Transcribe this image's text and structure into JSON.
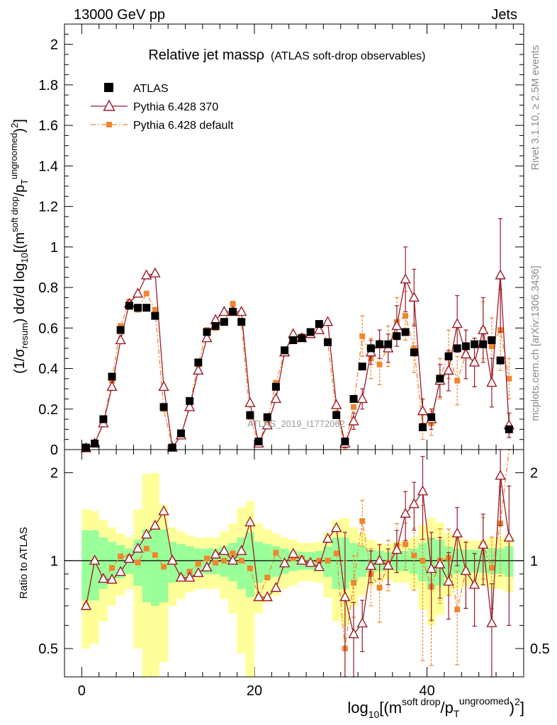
{
  "header": {
    "left": "13000 GeV pp",
    "right": "Jets",
    "title": "Relative jet massρ",
    "subtitle": "(ATLAS soft-drop observables)"
  },
  "side_labels": {
    "rivet": "Rivet 3.1.10, ≥ 2.5M events",
    "mcplots": "mcplots.cern.ch [arXiv:1306.3436]"
  },
  "watermark": "ATLAS_2019_I1772062",
  "legend": {
    "atlas": "ATLAS",
    "py370": "Pythia 6.428 370",
    "pydef": "Pythia 6.428 default"
  },
  "colors": {
    "data": "#000000",
    "py370": "#9b1b2a",
    "pydef": "#f0862e",
    "band_inner": "#99ff99",
    "band_outer": "#ffff99"
  },
  "axes": {
    "ylabel_main": "(1/σresum) dσ/d log10[(m soft drop/pT ungroomed)2]",
    "ylabel_ratio": "Ratio to ATLAS",
    "xlabel": "log10[(m soft drop/pT ungroomed)2]",
    "main_yticks": [
      "0",
      "0.2",
      "0.4",
      "0.6",
      "0.8",
      "1",
      "1.2",
      "1.4",
      "1.6",
      "1.8",
      "2"
    ],
    "ratio_yticks": [
      "0.5",
      "1",
      "2"
    ],
    "xticks": [
      "0",
      "20",
      "40"
    ]
  },
  "chart_data": {
    "type": "line",
    "x": [
      0.5,
      1.5,
      2.5,
      3.5,
      4.5,
      5.5,
      6.5,
      7.5,
      8.5,
      9.5,
      10.5,
      11.5,
      12.5,
      13.5,
      14.5,
      15.5,
      16.5,
      17.5,
      18.5,
      19.5,
      20.5,
      21.5,
      22.5,
      23.5,
      24.5,
      25.5,
      26.5,
      27.5,
      28.5,
      29.5,
      30.5,
      31.5,
      32.5,
      33.5,
      34.5,
      35.5,
      36.5,
      37.5,
      38.5,
      39.5,
      40.5,
      41.5,
      42.5,
      43.5,
      44.5,
      45.5,
      46.5,
      47.5,
      48.5,
      49.5
    ],
    "xlim": [
      -2,
      51.2
    ],
    "ylim_main": [
      0,
      2.1
    ],
    "ylim_ratio": [
      0.4,
      2.4
    ],
    "series": [
      {
        "name": "ATLAS",
        "values": [
          0.01,
          0.03,
          0.15,
          0.36,
          0.59,
          0.71,
          0.7,
          0.7,
          0.66,
          0.21,
          0.01,
          0.08,
          0.24,
          0.43,
          0.58,
          0.61,
          0.63,
          0.68,
          0.63,
          0.17,
          0.04,
          0.16,
          0.31,
          0.49,
          0.54,
          0.55,
          0.58,
          0.62,
          0.53,
          0.17,
          0.04,
          0.25,
          0.41,
          0.5,
          0.52,
          0.52,
          0.56,
          0.58,
          0.48,
          0.11,
          0.16,
          0.35,
          0.46,
          0.5,
          0.51,
          0.52,
          0.52,
          0.54,
          0.44,
          0.1
        ],
        "band_inner": [
          0.27,
          0.27,
          0.2,
          0.16,
          0.13,
          0.1,
          0.18,
          0.28,
          0.3,
          0.28,
          0.16,
          0.14,
          0.12,
          0.1,
          0.1,
          0.1,
          0.12,
          0.15,
          0.2,
          0.25,
          0.16,
          0.14,
          0.12,
          0.1,
          0.08,
          0.07,
          0.07,
          0.08,
          0.12,
          0.2,
          0.2,
          0.15,
          0.12,
          0.09,
          0.08,
          0.07,
          0.08,
          0.08,
          0.1,
          0.15,
          0.2,
          0.18,
          0.12,
          0.1,
          0.09,
          0.09,
          0.09,
          0.1,
          0.1,
          0.12
        ],
        "band_outer": [
          0.5,
          0.48,
          0.38,
          0.3,
          0.24,
          0.2,
          0.5,
          0.98,
          1.0,
          0.55,
          0.3,
          0.26,
          0.22,
          0.2,
          0.2,
          0.2,
          0.26,
          0.34,
          0.52,
          0.6,
          0.34,
          0.28,
          0.24,
          0.2,
          0.18,
          0.15,
          0.15,
          0.16,
          0.25,
          0.38,
          0.4,
          0.3,
          0.24,
          0.18,
          0.15,
          0.14,
          0.16,
          0.16,
          0.2,
          0.32,
          0.4,
          0.35,
          0.24,
          0.2,
          0.18,
          0.17,
          0.18,
          0.2,
          0.2,
          0.22
        ]
      },
      {
        "name": "Pythia 6.428 370",
        "values": [
          0.007,
          0.03,
          0.13,
          0.31,
          0.54,
          0.72,
          0.77,
          0.86,
          0.87,
          0.31,
          0.01,
          0.07,
          0.21,
          0.39,
          0.55,
          0.64,
          0.68,
          0.68,
          0.68,
          0.23,
          0.03,
          0.12,
          0.25,
          0.48,
          0.57,
          0.55,
          0.57,
          0.59,
          0.63,
          0.22,
          0.03,
          0.14,
          0.25,
          0.48,
          0.52,
          0.5,
          0.61,
          0.84,
          0.75,
          0.19,
          0.15,
          0.34,
          0.39,
          0.62,
          0.47,
          0.43,
          0.59,
          0.33,
          0.86,
          0.12
        ],
        "errors": [
          0.0,
          0.0,
          0.0,
          0.0,
          0.0,
          0.0,
          0.0,
          0.0,
          0.0,
          0.0,
          0.0,
          0.0,
          0.0,
          0.0,
          0.0,
          0.0,
          0.0,
          0.0,
          0.0,
          0.0,
          0.0,
          0.0,
          0.0,
          0.0,
          0.0,
          0.0,
          0.0,
          0.0,
          0.0,
          0.0,
          0.02,
          0.04,
          0.05,
          0.06,
          0.07,
          0.07,
          0.1,
          0.16,
          0.14,
          0.06,
          0.05,
          0.08,
          0.1,
          0.14,
          0.12,
          0.12,
          0.16,
          0.12,
          0.28,
          0.06
        ]
      },
      {
        "name": "Pythia 6.428 default",
        "values": [
          0.007,
          0.03,
          0.13,
          0.34,
          0.61,
          0.73,
          0.69,
          0.77,
          0.69,
          0.2,
          0.01,
          0.07,
          0.22,
          0.42,
          0.59,
          0.6,
          0.63,
          0.72,
          0.63,
          0.16,
          0.03,
          0.14,
          0.33,
          0.48,
          0.55,
          0.56,
          0.57,
          0.62,
          0.53,
          0.18,
          0.02,
          0.21,
          0.56,
          0.45,
          0.42,
          0.51,
          0.63,
          0.66,
          0.5,
          0.11,
          0.13,
          0.35,
          0.47,
          0.34,
          0.47,
          0.43,
          0.59,
          0.51,
          0.59,
          0.35
        ],
        "errors": [
          0.0,
          0.0,
          0.0,
          0.0,
          0.0,
          0.0,
          0.0,
          0.0,
          0.0,
          0.0,
          0.0,
          0.0,
          0.0,
          0.0,
          0.0,
          0.0,
          0.0,
          0.0,
          0.0,
          0.0,
          0.0,
          0.0,
          0.0,
          0.0,
          0.0,
          0.0,
          0.0,
          0.0,
          0.0,
          0.0,
          0.02,
          0.05,
          0.1,
          0.1,
          0.1,
          0.1,
          0.12,
          0.12,
          0.12,
          0.06,
          0.06,
          0.1,
          0.12,
          0.12,
          0.12,
          0.12,
          0.14,
          0.14,
          0.2,
          0.1
        ]
      }
    ]
  }
}
